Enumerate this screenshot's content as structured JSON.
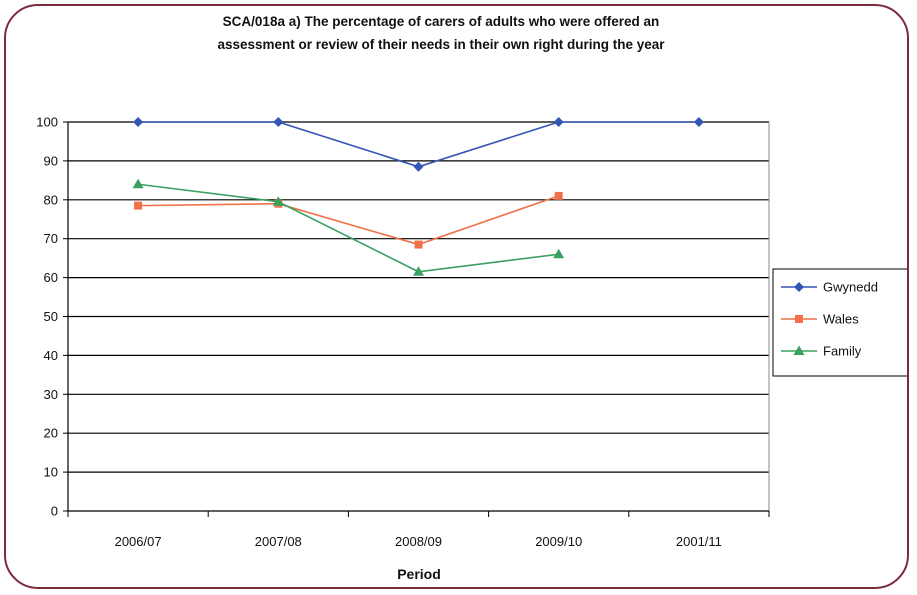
{
  "chart_data": {
    "type": "line",
    "title": "SCA/018a a) The percentage of carers of adults who were offered an assessment or review of their needs in their own right during the year",
    "title_lines": [
      "SCA/018a a) The percentage of carers of adults who were offered an",
      "assessment or review of their needs in their own right during the year"
    ],
    "xlabel": "Period",
    "ylabel": "",
    "categories": [
      "2006/07",
      "2007/08",
      "2008/09",
      "2009/10",
      "2001/11"
    ],
    "ylim": [
      0,
      100
    ],
    "yticks": [
      0,
      10,
      20,
      30,
      40,
      50,
      60,
      70,
      80,
      90,
      100
    ],
    "grid": "horizontal",
    "legend_position": "right",
    "series": [
      {
        "name": "Gwynedd",
        "color": "#3355b5",
        "marker": "diamond",
        "values": [
          100,
          100,
          88.5,
          100,
          100
        ]
      },
      {
        "name": "Wales",
        "color": "#f07048",
        "marker": "square",
        "values": [
          78.5,
          79,
          68.5,
          81,
          null
        ]
      },
      {
        "name": "Family",
        "color": "#3aa060",
        "marker": "triangle",
        "values": [
          84,
          79.5,
          61.5,
          66,
          null
        ]
      }
    ]
  },
  "frame": {
    "border_color": "#7a2b3c"
  }
}
